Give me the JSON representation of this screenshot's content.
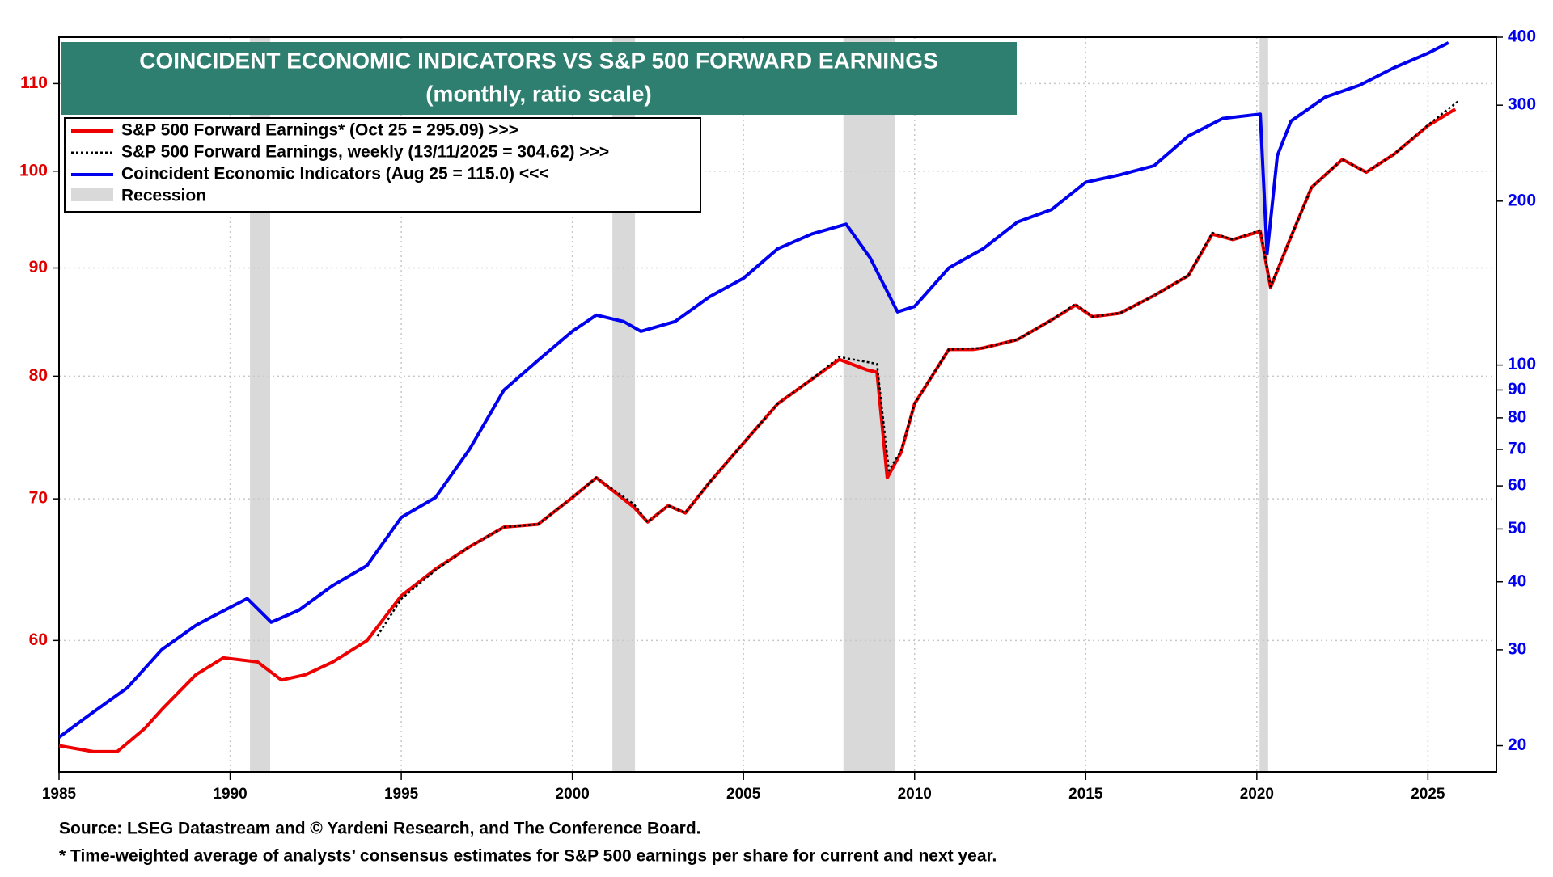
{
  "chart_data": {
    "type": "line",
    "title": "COINCIDENT ECONOMIC  INDICATORS VS S&P 500 FORWARD EARNINGS",
    "subtitle": "(monthly, ratio scale)",
    "xlim": [
      1985,
      2027
    ],
    "xticks": [
      1985,
      1990,
      1995,
      2000,
      2005,
      2010,
      2015,
      2020,
      2025
    ],
    "ylim": [
      52,
      115.7
    ],
    "yticks": [
      60,
      70,
      80,
      90,
      100,
      110
    ],
    "y2lim": [
      17.9,
      400
    ],
    "y2ticks": [
      20,
      30,
      40,
      50,
      60,
      70,
      80,
      90,
      100,
      200,
      300,
      400
    ],
    "log_scale": true,
    "grid": true,
    "ytick_color": "#e00000",
    "y2tick_color": "#0000ee",
    "legend": "top-left",
    "recession_label": "Recession",
    "recession_color": "#d9d9d9",
    "recessions": [
      [
        1990.58,
        1991.17
      ],
      [
        2001.17,
        2001.83
      ],
      [
        2007.92,
        2009.42
      ],
      [
        2020.08,
        2020.33
      ]
    ],
    "series": [
      {
        "name": "S&P 500 Forward Earnings* (Oct 25 = 295.09) >>>",
        "color": "#ee0000",
        "axis": "y2",
        "style": "solid",
        "x": [
          1985,
          1986,
          1986.7,
          1987.5,
          1988,
          1989,
          1989.8,
          1990.8,
          1991.5,
          1992.2,
          1993,
          1994,
          1995,
          1996,
          1997,
          1998,
          1999,
          2000,
          2000.7,
          2001.8,
          2002.2,
          2002.8,
          2003.3,
          2004,
          2005,
          2006,
          2007,
          2007.8,
          2008.6,
          2008.9,
          2009.2,
          2009.6,
          2010,
          2011,
          2011.7,
          2012,
          2013,
          2014,
          2014.7,
          2015.2,
          2016,
          2017,
          2018,
          2018.7,
          2019.3,
          2020.1,
          2020.4,
          2021,
          2021.6,
          2022.5,
          2023.2,
          2024,
          2025,
          2025.8
        ],
        "values": [
          20.0,
          19.5,
          19.5,
          21.5,
          23.3,
          27.0,
          29.0,
          28.5,
          26.4,
          27.0,
          28.5,
          31.2,
          37.7,
          42.2,
          46.4,
          50.4,
          51.0,
          57.1,
          62.1,
          54.8,
          51.5,
          55.2,
          53.5,
          60.8,
          71.9,
          84.9,
          94.2,
          102.4,
          98.0,
          97.0,
          62.1,
          69.0,
          84.9,
          106.8,
          106.8,
          107.5,
          111.3,
          121,
          128.8,
          122.7,
          124.5,
          134.2,
          146,
          173.9,
          170,
          176,
          138.8,
          172,
          212,
          238.6,
          226,
          243.6,
          275,
          295.09
        ]
      },
      {
        "name": "S&P 500 Forward Earnings, weekly (13/11/2025 = 304.62) >>>",
        "color": "#000000",
        "axis": "y2",
        "style": "dotted",
        "x": [
          1994.3,
          1995,
          1996,
          1997,
          1998,
          1999,
          2000,
          2000.7,
          2001.8,
          2002.2,
          2002.8,
          2003.3,
          2004,
          2005,
          2006,
          2007,
          2007.8,
          2008.9,
          2009.25,
          2009.6,
          2010,
          2011,
          2012,
          2013,
          2014,
          2014.7,
          2015.2,
          2016,
          2017,
          2018,
          2018.7,
          2019.3,
          2020.1,
          2020.4,
          2021,
          2021.6,
          2022.5,
          2023.2,
          2024,
          2025,
          2025.87
        ],
        "values": [
          31.8,
          37.2,
          42.0,
          46.4,
          50.4,
          51.0,
          57.1,
          62.1,
          55.5,
          51.5,
          55.2,
          53.5,
          60.8,
          71.9,
          84.9,
          94.2,
          103.5,
          100.5,
          64.0,
          69.5,
          84.9,
          106.8,
          107.5,
          111.3,
          121,
          129.5,
          122.7,
          124.5,
          134.2,
          146,
          175,
          170,
          177,
          139.5,
          172,
          212,
          238.6,
          226,
          243.6,
          276,
          304.62
        ]
      },
      {
        "name": "Coincident Economic Indicators (Aug 25 = 115.0) <<<",
        "color": "#0000ee",
        "axis": "y",
        "style": "solid",
        "x": [
          1985,
          1986,
          1987,
          1988,
          1989,
          1989.5,
          1990.5,
          1991.2,
          1992,
          1993,
          1994,
          1995,
          1996,
          1997,
          1998,
          1999,
          2000,
          2000.7,
          2001.5,
          2002,
          2003,
          2004,
          2005,
          2006,
          2007,
          2008,
          2008.7,
          2009.5,
          2010,
          2011,
          2012,
          2013,
          2014,
          2015,
          2016,
          2017,
          2018,
          2019,
          2020.1,
          2020.3,
          2020.6,
          2021,
          2022,
          2023,
          2024,
          2025,
          2025.6
        ],
        "values": [
          54.0,
          55.5,
          57.0,
          59.4,
          61.0,
          61.6,
          62.8,
          61.2,
          62.0,
          63.7,
          65.1,
          68.6,
          70.1,
          73.9,
          78.8,
          81.4,
          84.0,
          85.5,
          84.9,
          84.0,
          84.9,
          87.2,
          89.0,
          91.9,
          93.4,
          94.4,
          91.0,
          85.8,
          86.3,
          90.0,
          91.9,
          94.6,
          95.9,
          98.8,
          99.6,
          100.6,
          103.9,
          105.9,
          106.4,
          91.4,
          101.7,
          105.6,
          108.4,
          109.8,
          111.9,
          113.7,
          115.0
        ]
      }
    ],
    "notes": [
      "Source: LSEG Datastream and © Yardeni Research, and The Conference Board.",
      "* Time-weighted average of analysts’ consensus estimates for S&P 500 earnings per share for current and next year."
    ]
  }
}
